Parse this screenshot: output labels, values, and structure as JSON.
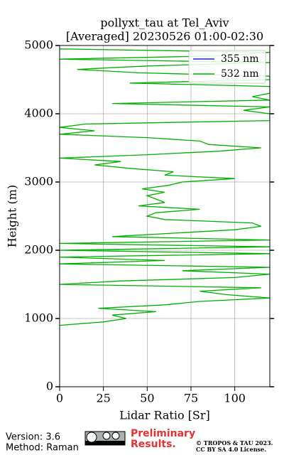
{
  "chart_data": {
    "type": "profile",
    "title": [
      "pollyxt_tau at Tel_Aviv",
      "[Averaged] 20230526 01:00-02:30"
    ],
    "x_label": "Lidar Ratio [Sr]",
    "y_label": "Height (m)",
    "y": [
      900,
      950,
      1000,
      1050,
      1100,
      1150,
      1200,
      1250,
      1300,
      1350,
      1400,
      1450,
      1500,
      1550,
      1600,
      1650,
      1700,
      1750,
      1800,
      1850,
      1900,
      1950,
      2000,
      2050,
      2100,
      2150,
      2200,
      2250,
      2300,
      2350,
      2400,
      2450,
      2500,
      2550,
      2600,
      2650,
      2700,
      2750,
      2800,
      2850,
      2900,
      2950,
      3000,
      3050,
      3100,
      3150,
      3200,
      3250,
      3300,
      3350,
      3400,
      3450,
      3500,
      3550,
      3600,
      3650,
      3700,
      3750,
      3800,
      3850,
      3900,
      3950,
      4000,
      4050,
      4100,
      4150,
      4200,
      4250,
      4300,
      4350,
      4400,
      4450,
      4500,
      4550,
      4600,
      4650,
      4700,
      4750,
      4800,
      4850,
      4900,
      4950
    ],
    "series": [
      {
        "name": "355 nm",
        "color": "#1f1fe0",
        "values": [
          null,
          null,
          null,
          null,
          null,
          null,
          null,
          null,
          null,
          null,
          null,
          null,
          null,
          null,
          null,
          null,
          null,
          null,
          null,
          null,
          null,
          null,
          null,
          null,
          null,
          null,
          null,
          null,
          null,
          null,
          null,
          null,
          null,
          null,
          null,
          null,
          null,
          null,
          null,
          null,
          null,
          null,
          null,
          null,
          null,
          null,
          null,
          null,
          null,
          null,
          null,
          null,
          null,
          null,
          null,
          null,
          null,
          null,
          null,
          null,
          null,
          null,
          null,
          null,
          null,
          null,
          null,
          null,
          null,
          null,
          null,
          null,
          null,
          null,
          null,
          null,
          null,
          null,
          null,
          null,
          null,
          null
        ]
      },
      {
        "name": "532 nm",
        "color": "#00b000",
        "values": [
          0,
          25,
          38,
          30,
          55,
          22,
          60,
          80,
          120,
          95,
          80,
          115,
          0,
          35,
          100,
          120,
          70,
          120,
          0,
          60,
          0,
          120,
          0,
          120,
          0,
          120,
          30,
          65,
          100,
          115,
          110,
          60,
          50,
          55,
          80,
          45,
          60,
          55,
          50,
          60,
          47,
          62,
          70,
          100,
          60,
          65,
          40,
          20,
          35,
          0,
          50,
          90,
          115,
          85,
          80,
          50,
          0,
          20,
          0,
          15,
          120,
          120,
          120,
          105,
          120,
          30,
          120,
          110,
          120,
          120,
          120,
          40,
          120,
          120,
          45,
          10,
          50,
          120,
          0,
          95,
          120,
          0
        ]
      }
    ],
    "xlim": [
      0,
      120
    ],
    "ylim": [
      0,
      5000
    ],
    "xticks": [
      0,
      25,
      50,
      75,
      100
    ],
    "yticks": [
      0,
      1000,
      2000,
      3000,
      4000,
      5000
    ],
    "grid": true,
    "legend": "upper right",
    "footer": {
      "version": "Version: 3.6",
      "method": "Method: Raman",
      "notice": [
        "Preliminary",
        "Results."
      ],
      "copyright": [
        "© TROPOS & TAU 2023.",
        "CC BY SA 4.0 License."
      ]
    }
  }
}
